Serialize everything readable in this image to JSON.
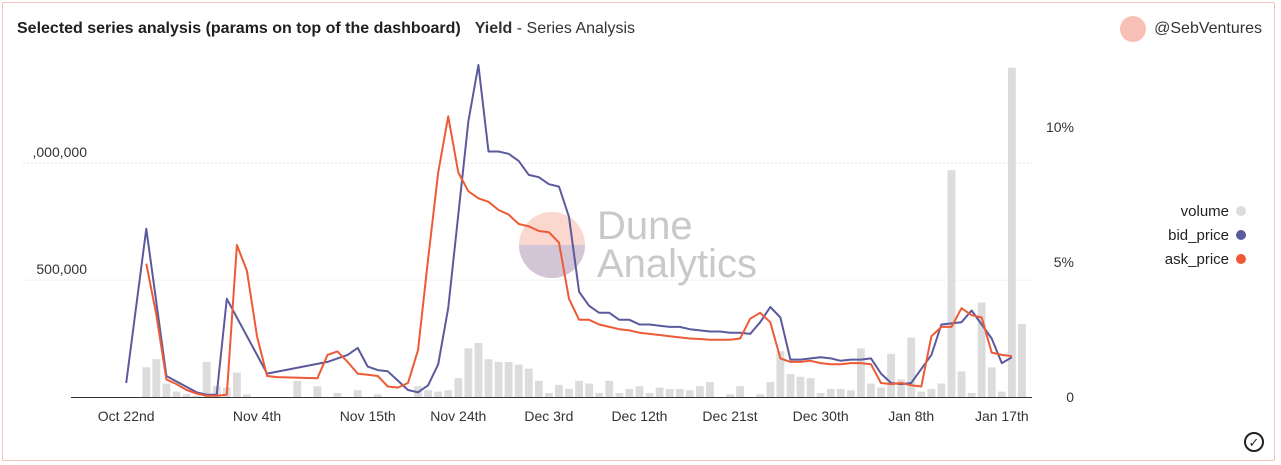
{
  "header": {
    "title": "Selected series analysis (params on top of the dashboard)",
    "subtitle_strong": "Yield",
    "subtitle_rest": " - Series Analysis",
    "author": "@SebVentures"
  },
  "watermark": {
    "line1": "Dune",
    "line2": "Analytics"
  },
  "status_icon": "check-circle-icon",
  "chart_data": {
    "type": "line",
    "title": "Selected series analysis (params on top of the dashboard)",
    "x_tick_labels": [
      "Oct 22nd",
      "Nov 4th",
      "Nov 15th",
      "Nov 24th",
      "Dec 3rd",
      "Dec 12th",
      "Dec 21st",
      "Dec 30th",
      "Jan 8th",
      "Jan 17th"
    ],
    "x_tick_days": [
      0,
      13,
      24,
      33,
      42,
      51,
      60,
      69,
      78,
      87
    ],
    "xlim_days": [
      -2.5,
      90
    ],
    "y_left": {
      "ticks": [
        500000,
        1000000
      ],
      "tick_labels": [
        "500,000",
        ",000,000"
      ],
      "lim": [
        0,
        1420000
      ]
    },
    "y_right": {
      "ticks": [
        0,
        5,
        10
      ],
      "tick_labels": [
        "0",
        "5%",
        "10%"
      ],
      "lim": [
        0,
        12.3
      ],
      "unit": "%"
    },
    "grid": "horizontal",
    "legend": {
      "placement": "right",
      "entries": [
        {
          "name": "volume",
          "color": "#dcdcdc"
        },
        {
          "name": "bid_price",
          "color": "#5a5a9c"
        },
        {
          "name": "ask_price",
          "color": "#ee5a36"
        }
      ]
    },
    "series": [
      {
        "name": "volume",
        "kind": "bar",
        "axis": "right",
        "color": "#dcdcdc",
        "points": [
          [
            2,
            1.1
          ],
          [
            3,
            1.4
          ],
          [
            4,
            0.5
          ],
          [
            5,
            0.2
          ],
          [
            6,
            0.1
          ],
          [
            7,
            0.05
          ],
          [
            8,
            1.3
          ],
          [
            9,
            0.4
          ],
          [
            10,
            0.35
          ],
          [
            11,
            0.9
          ],
          [
            12,
            0.1
          ],
          [
            17,
            0.6
          ],
          [
            19,
            0.4
          ],
          [
            21,
            0.15
          ],
          [
            23,
            0.25
          ],
          [
            25,
            0.1
          ],
          [
            29,
            0.4
          ],
          [
            30,
            0.25
          ],
          [
            31,
            0.2
          ],
          [
            32,
            0.25
          ],
          [
            33,
            0.7
          ],
          [
            34,
            1.8
          ],
          [
            35,
            2.0
          ],
          [
            36,
            1.4
          ],
          [
            37,
            1.3
          ],
          [
            38,
            1.3
          ],
          [
            39,
            1.2
          ],
          [
            40,
            1.05
          ],
          [
            41,
            0.6
          ],
          [
            42,
            0.15
          ],
          [
            43,
            0.45
          ],
          [
            44,
            0.3
          ],
          [
            45,
            0.6
          ],
          [
            46,
            0.5
          ],
          [
            47,
            0.15
          ],
          [
            48,
            0.6
          ],
          [
            49,
            0.15
          ],
          [
            50,
            0.3
          ],
          [
            51,
            0.4
          ],
          [
            52,
            0.15
          ],
          [
            53,
            0.35
          ],
          [
            54,
            0.3
          ],
          [
            55,
            0.3
          ],
          [
            56,
            0.25
          ],
          [
            57,
            0.4
          ],
          [
            58,
            0.55
          ],
          [
            60,
            0.1
          ],
          [
            61,
            0.4
          ],
          [
            63,
            0.1
          ],
          [
            64,
            0.55
          ],
          [
            65,
            1.7
          ],
          [
            66,
            0.85
          ],
          [
            67,
            0.75
          ],
          [
            68,
            0.7
          ],
          [
            69,
            0.15
          ],
          [
            70,
            0.3
          ],
          [
            71,
            0.3
          ],
          [
            72,
            0.25
          ],
          [
            73,
            1.8
          ],
          [
            74,
            0.5
          ],
          [
            75,
            0.35
          ],
          [
            76,
            1.6
          ],
          [
            77,
            0.65
          ],
          [
            78,
            2.2
          ],
          [
            79,
            0.2
          ],
          [
            80,
            0.3
          ],
          [
            81,
            0.5
          ],
          [
            82,
            8.4
          ],
          [
            83,
            0.95
          ],
          [
            84,
            0.15
          ],
          [
            85,
            3.5
          ],
          [
            86,
            1.1
          ],
          [
            87,
            0.2
          ],
          [
            88,
            12.2
          ],
          [
            89,
            2.7
          ]
        ]
      },
      {
        "name": "bid_price",
        "kind": "line",
        "axis": "left",
        "color": "#5a5a9c",
        "points": [
          [
            0,
            60000
          ],
          [
            2,
            720000
          ],
          [
            4,
            90000
          ],
          [
            7,
            20000
          ],
          [
            8,
            10000
          ],
          [
            9,
            10000
          ],
          [
            10,
            420000
          ],
          [
            14,
            100000
          ],
          [
            20,
            150000
          ],
          [
            22,
            180000
          ],
          [
            23,
            210000
          ],
          [
            24,
            130000
          ],
          [
            25,
            115000
          ],
          [
            26,
            110000
          ],
          [
            28,
            30000
          ],
          [
            29,
            20000
          ],
          [
            30,
            50000
          ],
          [
            31,
            140000
          ],
          [
            32,
            380000
          ],
          [
            33,
            780000
          ],
          [
            34,
            1180000
          ],
          [
            35,
            1420000
          ],
          [
            36,
            1050000
          ],
          [
            37,
            1050000
          ],
          [
            38,
            1040000
          ],
          [
            39,
            1010000
          ],
          [
            40,
            950000
          ],
          [
            41,
            940000
          ],
          [
            42,
            910000
          ],
          [
            43,
            900000
          ],
          [
            44,
            770000
          ],
          [
            45,
            450000
          ],
          [
            46,
            390000
          ],
          [
            47,
            360000
          ],
          [
            48,
            360000
          ],
          [
            49,
            330000
          ],
          [
            50,
            330000
          ],
          [
            51,
            310000
          ],
          [
            52,
            310000
          ],
          [
            53,
            305000
          ],
          [
            54,
            300000
          ],
          [
            55,
            300000
          ],
          [
            56,
            290000
          ],
          [
            57,
            285000
          ],
          [
            58,
            280000
          ],
          [
            59,
            280000
          ],
          [
            60,
            275000
          ],
          [
            61,
            275000
          ],
          [
            62,
            270000
          ],
          [
            63,
            320000
          ],
          [
            64,
            385000
          ],
          [
            65,
            340000
          ],
          [
            66,
            160000
          ],
          [
            67,
            160000
          ],
          [
            68,
            165000
          ],
          [
            69,
            170000
          ],
          [
            70,
            165000
          ],
          [
            71,
            155000
          ],
          [
            72,
            160000
          ],
          [
            73,
            160000
          ],
          [
            74,
            165000
          ],
          [
            75,
            100000
          ],
          [
            76,
            60000
          ],
          [
            77,
            55000
          ],
          [
            78,
            60000
          ],
          [
            79,
            120000
          ],
          [
            80,
            180000
          ],
          [
            81,
            310000
          ],
          [
            82,
            315000
          ],
          [
            83,
            320000
          ],
          [
            84,
            370000
          ],
          [
            85,
            310000
          ],
          [
            86,
            250000
          ],
          [
            87,
            145000
          ],
          [
            88,
            170000
          ]
        ]
      },
      {
        "name": "ask_price",
        "kind": "line",
        "axis": "left",
        "color": "#ee5a36",
        "points": [
          [
            2,
            570000
          ],
          [
            3,
            350000
          ],
          [
            4,
            75000
          ],
          [
            5,
            55000
          ],
          [
            6,
            30000
          ],
          [
            7,
            15000
          ],
          [
            8,
            5000
          ],
          [
            9,
            5000
          ],
          [
            10,
            10000
          ],
          [
            11,
            650000
          ],
          [
            12,
            540000
          ],
          [
            13,
            260000
          ],
          [
            14,
            90000
          ],
          [
            15,
            85000
          ],
          [
            19,
            80000
          ],
          [
            20,
            180000
          ],
          [
            21,
            195000
          ],
          [
            22,
            150000
          ],
          [
            23,
            100000
          ],
          [
            24,
            95000
          ],
          [
            25,
            90000
          ],
          [
            26,
            45000
          ],
          [
            27,
            40000
          ],
          [
            28,
            60000
          ],
          [
            29,
            200000
          ],
          [
            30,
            590000
          ],
          [
            31,
            960000
          ],
          [
            32,
            1200000
          ],
          [
            33,
            960000
          ],
          [
            34,
            880000
          ],
          [
            35,
            850000
          ],
          [
            36,
            835000
          ],
          [
            37,
            800000
          ],
          [
            38,
            780000
          ],
          [
            39,
            740000
          ],
          [
            40,
            730000
          ],
          [
            41,
            710000
          ],
          [
            42,
            705000
          ],
          [
            43,
            660000
          ],
          [
            44,
            420000
          ],
          [
            45,
            330000
          ],
          [
            46,
            330000
          ],
          [
            47,
            310000
          ],
          [
            48,
            300000
          ],
          [
            49,
            290000
          ],
          [
            50,
            285000
          ],
          [
            51,
            275000
          ],
          [
            52,
            270000
          ],
          [
            53,
            265000
          ],
          [
            54,
            260000
          ],
          [
            55,
            255000
          ],
          [
            56,
            250000
          ],
          [
            57,
            248000
          ],
          [
            58,
            245000
          ],
          [
            59,
            245000
          ],
          [
            60,
            245000
          ],
          [
            61,
            250000
          ],
          [
            62,
            335000
          ],
          [
            63,
            360000
          ],
          [
            64,
            320000
          ],
          [
            65,
            165000
          ],
          [
            66,
            150000
          ],
          [
            67,
            150000
          ],
          [
            68,
            155000
          ],
          [
            69,
            145000
          ],
          [
            70,
            140000
          ],
          [
            71,
            140000
          ],
          [
            72,
            145000
          ],
          [
            73,
            145000
          ],
          [
            74,
            140000
          ],
          [
            75,
            60000
          ],
          [
            76,
            55000
          ],
          [
            77,
            60000
          ],
          [
            78,
            50000
          ],
          [
            79,
            45000
          ],
          [
            80,
            260000
          ],
          [
            81,
            300000
          ],
          [
            82,
            300000
          ],
          [
            83,
            380000
          ],
          [
            84,
            350000
          ],
          [
            85,
            340000
          ],
          [
            86,
            190000
          ],
          [
            87,
            180000
          ],
          [
            88,
            175000
          ]
        ]
      }
    ]
  }
}
